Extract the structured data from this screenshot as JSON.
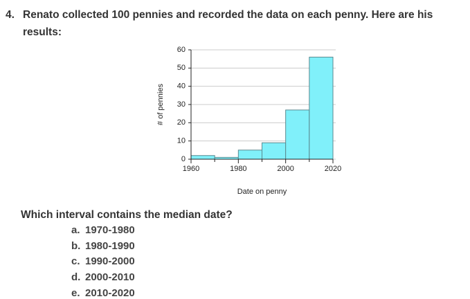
{
  "question": {
    "number": "4.",
    "text": "Renato collected 100 pennies and recorded the data on each penny. Here are his results:"
  },
  "chart_data": {
    "type": "histogram",
    "bins": [
      1960,
      1970,
      1980,
      1990,
      2000,
      2010,
      2020
    ],
    "values": [
      2,
      1,
      5,
      9,
      27,
      56
    ],
    "color": "#80f0fa",
    "xlabel": "Date on penny",
    "ylabel": "# of pennies",
    "xlim": [
      1960,
      2020
    ],
    "xticks": [
      1960,
      1980,
      2000,
      2020
    ],
    "xminor_ticks": [
      1970,
      1990,
      2010
    ],
    "ylim": [
      0,
      60
    ],
    "yticks": [
      0,
      10,
      20,
      30,
      40,
      50,
      60
    ],
    "grid": true
  },
  "prompt": "Which interval contains the median date?",
  "options": [
    {
      "letter": "a.",
      "text": "1970-1980"
    },
    {
      "letter": "b.",
      "text": "1980-1990"
    },
    {
      "letter": "c.",
      "text": "1990-2000"
    },
    {
      "letter": "d.",
      "text": "2000-2010"
    },
    {
      "letter": "e.",
      "text": "2010-2020"
    }
  ]
}
